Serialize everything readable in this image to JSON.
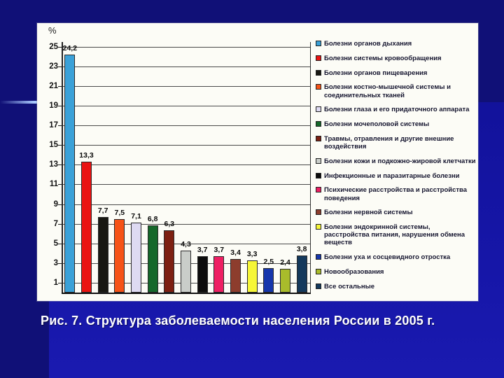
{
  "slide": {
    "caption": "Рис. 7. Структура заболеваемости населения России в 2005 г.",
    "colors": {
      "background_dark": "#101077",
      "background_bright": "#1414a3",
      "accent_line": "#a9c9ff",
      "panel": "#fcfcf6",
      "caption_text": "#ffffff"
    }
  },
  "chart_data": {
    "type": "bar",
    "title": "",
    "xlabel": "",
    "ylabel": "%",
    "ylim": [
      0,
      25
    ],
    "yticks": [
      25,
      23,
      21,
      19,
      17,
      15,
      13,
      11,
      9,
      7,
      5,
      3,
      1
    ],
    "grid": true,
    "legend_position": "right",
    "categories": [
      "Болезни органов дыхания",
      "Болезни системы кровообращения",
      "Болезни органов пищеварения",
      "Болезни костно-мышечной системы и соединительных тканей",
      "Болезни глаза и его придаточного аппарата",
      "Болезни мочеполовой системы",
      "Травмы, отравления и другие внешние воздействия",
      "Болезни кожи и подкожно-жировой клетчатки",
      "Инфекционные и паразитарные болезни",
      "Психические расстройства и расстройства поведения",
      "Болезни нервной системы",
      "Болезни эндокринной системы, расстройства питания, нарушения обмена веществ",
      "Болезни уха и сосцевидного отростка",
      "Новообразования",
      "Все остальные"
    ],
    "values": [
      24.2,
      13.3,
      7.7,
      7.5,
      7.1,
      6.8,
      6.3,
      4.3,
      3.7,
      3.7,
      3.4,
      3.3,
      2.5,
      2.4,
      3.8
    ],
    "value_labels": [
      "24,2",
      "13,3",
      "7,7",
      "7,5",
      "7,1",
      "6,8",
      "6,3",
      "4,3",
      "3,7",
      "3,7",
      "3,4",
      "3,3",
      "2,5",
      "2,4",
      "3,8"
    ],
    "colors": [
      "#3ba1d8",
      "#ea1312",
      "#181812",
      "#f65317",
      "#dedaf2",
      "#15682a",
      "#7d2012",
      "#c9cdc9",
      "#0c0c0c",
      "#ee1f63",
      "#8d3d2d",
      "#f6f637",
      "#1636ac",
      "#a9bc2b",
      "#14395c"
    ]
  }
}
